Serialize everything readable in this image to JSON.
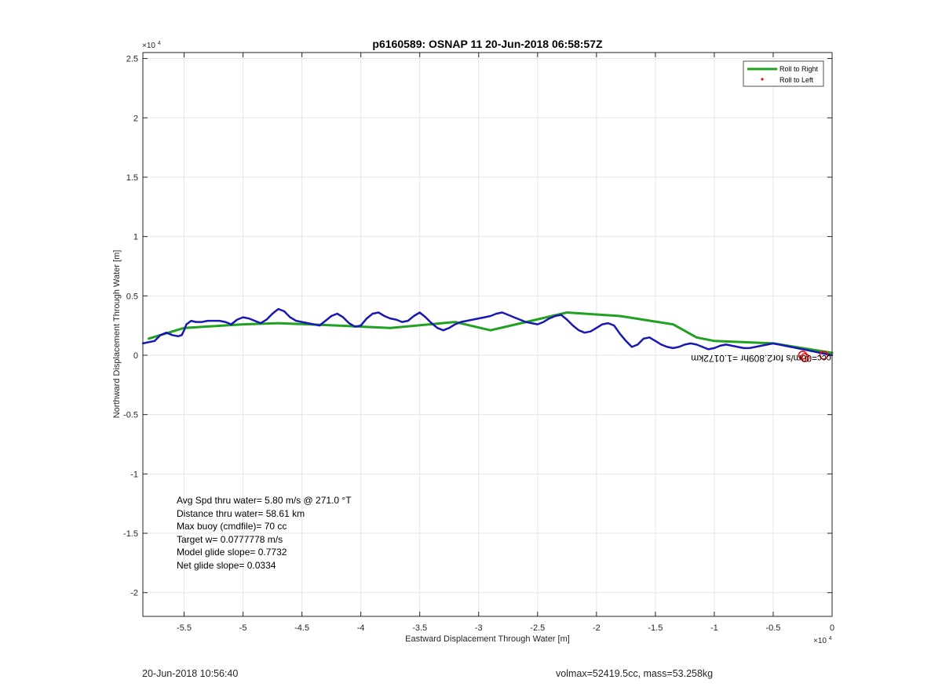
{
  "chart_data": {
    "type": "line",
    "title": "p6160589: OSNAP 11 20-Jun-2018 06:58:57Z",
    "xlabel": "Eastward Displacement Through Water [m]",
    "ylabel": "Northward Displacement Through Water [m]",
    "x_exponent_label": "×10",
    "x_exponent": "4",
    "y_exponent_label": "×10",
    "y_exponent": "4",
    "xlim": [
      -58500,
      0
    ],
    "ylim": [
      -22000,
      25500
    ],
    "x_ticks": [
      -55000,
      -50000,
      -45000,
      -40000,
      -35000,
      -30000,
      -25000,
      -20000,
      -15000,
      -10000,
      -5000,
      0
    ],
    "x_tick_labels": [
      "-5.5",
      "-5",
      "-4.5",
      "-4",
      "-3.5",
      "-3",
      "-2.5",
      "-2",
      "-1.5",
      "-1",
      "-0.5",
      "0"
    ],
    "y_ticks": [
      -20000,
      -15000,
      -10000,
      -5000,
      0,
      5000,
      10000,
      15000,
      20000,
      25000
    ],
    "y_tick_labels": [
      "-2",
      "-1.5",
      "-1",
      "-0.5",
      "0",
      "0.5",
      "1",
      "1.5",
      "2",
      "2.5"
    ],
    "grid": true,
    "legend_placement": "top-right",
    "legend": [
      {
        "label": "Roll to Right",
        "color": "#21a121",
        "style": "line"
      },
      {
        "label": "Roll to Left",
        "color": "#ff0000",
        "style": "dot"
      }
    ],
    "series": [
      {
        "name": "Roll to Right",
        "color": "#21a121",
        "x": [
          -58000,
          -55000,
          -50000,
          -47000,
          -42000,
          -37500,
          -32000,
          -29000,
          -22500,
          -18000,
          -13500,
          -11500,
          -10000,
          -5000,
          0
        ],
        "y": [
          1400,
          2300,
          2600,
          2700,
          2500,
          2300,
          2800,
          2100,
          3600,
          3300,
          2600,
          1500,
          1200,
          1000,
          200
        ]
      },
      {
        "color": "#1818b4",
        "x": [
          -58500,
          -58000,
          -57500,
          -57000,
          -56500,
          -56000,
          -55500,
          -55200,
          -55000,
          -54800,
          -54400,
          -54000,
          -53500,
          -53000,
          -52500,
          -52000,
          -51500,
          -51000,
          -50500,
          -50000,
          -49500,
          -49000,
          -48500,
          -48000,
          -47500,
          -47000,
          -46500,
          -46000,
          -45500,
          -45000,
          -44500,
          -44000,
          -43500,
          -43000,
          -42500,
          -42000,
          -41500,
          -41000,
          -40500,
          -40000,
          -39500,
          -39000,
          -38500,
          -38000,
          -37500,
          -37000,
          -36500,
          -36000,
          -35500,
          -35000,
          -34500,
          -34000,
          -33500,
          -33000,
          -32500,
          -32000,
          -31500,
          -31000,
          -30500,
          -30000,
          -29500,
          -29000,
          -28500,
          -28000,
          -27500,
          -27000,
          -26500,
          -26000,
          -25500,
          -25000,
          -24500,
          -24000,
          -23500,
          -23000,
          -22500,
          -22000,
          -21500,
          -21000,
          -20500,
          -20000,
          -19500,
          -19000,
          -18500,
          -18000,
          -17500,
          -17000,
          -16500,
          -16000,
          -15500,
          -15000,
          -14500,
          -14000,
          -13500,
          -13000,
          -12500,
          -12000,
          -11500,
          -11000,
          -10500,
          -10000,
          -9500,
          -9000,
          -8500,
          -8000,
          -7500,
          -7000,
          -6500,
          -6000,
          -5500,
          -5000,
          -4500,
          -4000,
          -3500,
          -3000,
          -2500,
          -2000,
          -1500,
          -1000,
          -500,
          0
        ],
        "y": [
          1000,
          1100,
          1200,
          1700,
          1900,
          1700,
          1600,
          1700,
          2100,
          2600,
          2900,
          2800,
          2800,
          2900,
          2900,
          2900,
          2800,
          2600,
          3000,
          3200,
          3100,
          2900,
          2700,
          3000,
          3500,
          3900,
          3700,
          3200,
          2900,
          2800,
          2700,
          2600,
          2500,
          2900,
          3300,
          3500,
          3200,
          2700,
          2400,
          2500,
          3100,
          3500,
          3600,
          3300,
          3100,
          3000,
          2800,
          2900,
          3300,
          3600,
          3200,
          2700,
          2300,
          2100,
          2300,
          2600,
          2800,
          2900,
          3000,
          3100,
          3200,
          3300,
          3500,
          3600,
          3400,
          3200,
          3000,
          2800,
          2700,
          2600,
          2800,
          3100,
          3300,
          3400,
          3000,
          2500,
          2100,
          1900,
          2000,
          2300,
          2600,
          2700,
          2500,
          1800,
          1200,
          700,
          900,
          1400,
          1500,
          1200,
          900,
          700,
          600,
          700,
          900,
          1000,
          900,
          700,
          500,
          600,
          800,
          900,
          800,
          700,
          600,
          600,
          700,
          800,
          900,
          1000,
          900,
          800,
          700,
          600,
          500,
          400,
          300,
          200,
          100,
          0
        ]
      }
    ],
    "markers": [
      {
        "color": "#ff0000",
        "x": -2500,
        "y": 0
      },
      {
        "color": "#ff0000",
        "x": -2300,
        "y": -200
      },
      {
        "color": "#ff0000",
        "x": -700,
        "y": 0
      }
    ],
    "mirrored_annotation": {
      "text": "ccc=00m/s for2.809hr =1.0172km",
      "x": -2000,
      "y": 0
    },
    "annotations": [
      "Avg Spd thru water=  5.80 m/s @ 271.0 °T",
      "Distance thru water= 58.61 km",
      "Max buoy (cmdfile)= 70 cc",
      "Target w= 0.0777778 m/s",
      "Model glide slope= 0.7732",
      "Net glide slope= 0.0334"
    ]
  },
  "footer": {
    "left": "20-Jun-2018 10:56:40",
    "right": "volmax=52419.5cc, mass=53.258kg"
  }
}
